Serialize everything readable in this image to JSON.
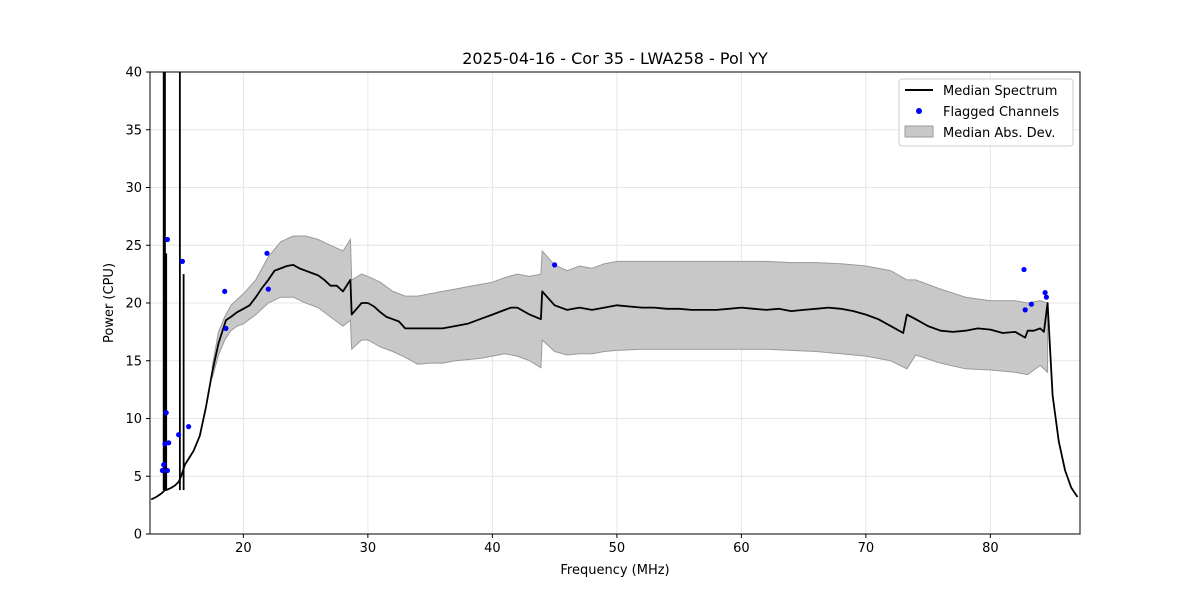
{
  "chart_data": {
    "type": "line",
    "title": "2025-04-16 - Cor 35 - LWA258 - Pol YY",
    "xlabel": "Frequency (MHz)",
    "ylabel": "Power (CPU)",
    "xlim": [
      12.5,
      87.2
    ],
    "ylim": [
      0,
      40
    ],
    "xticks": [
      20,
      30,
      40,
      50,
      60,
      70,
      80
    ],
    "yticks": [
      0,
      5,
      10,
      15,
      20,
      25,
      30,
      35,
      40
    ],
    "grid": true,
    "legend_position": "top-right",
    "legend": [
      "Median Spectrum",
      "Flagged Channels",
      "Median Abs. Dev."
    ],
    "colors": {
      "median": "#000000",
      "flagged": "#0000ff",
      "mad_fill": "#c8c8c8",
      "mad_edge": "#9a9a9a",
      "grid": "#e6e6e6"
    },
    "series": [
      {
        "name": "Median Spectrum",
        "x": [
          12.6,
          13.0,
          13.4,
          13.6,
          13.7,
          13.8,
          14.0,
          14.2,
          14.5,
          14.8,
          15.0,
          15.3,
          15.6,
          16.0,
          16.5,
          17.0,
          17.5,
          18.0,
          18.3,
          18.6,
          19.0,
          19.5,
          20.0,
          20.5,
          21.0,
          21.5,
          22.0,
          22.5,
          23.0,
          23.5,
          24.0,
          24.5,
          25.0,
          25.5,
          26.0,
          26.5,
          27.0,
          27.5,
          28.0,
          28.6,
          28.7,
          29.5,
          30.0,
          30.5,
          31.0,
          31.5,
          32.0,
          32.5,
          33.0,
          34.0,
          35.0,
          36.0,
          37.0,
          38.0,
          39.0,
          40.0,
          41.0,
          41.5,
          42.0,
          43.0,
          43.9,
          44.0,
          45.0,
          46.0,
          47.0,
          48.0,
          49.0,
          50.0,
          51.0,
          52.0,
          53.0,
          54.0,
          55.0,
          56.0,
          57.0,
          58.0,
          59.0,
          60.0,
          61.0,
          62.0,
          63.0,
          64.0,
          65.0,
          66.0,
          67.0,
          68.0,
          69.0,
          70.0,
          71.0,
          72.0,
          73.0,
          73.3,
          74.0,
          75.0,
          76.0,
          77.0,
          78.0,
          79.0,
          80.0,
          81.0,
          82.0,
          82.8,
          83.0,
          83.5,
          84.0,
          84.3,
          84.6,
          85.0,
          85.5,
          86.0,
          86.5,
          87.0
        ],
        "y": [
          3.0,
          3.2,
          3.5,
          3.7,
          3.8,
          3.8,
          3.9,
          4.0,
          4.2,
          4.5,
          5.0,
          6.0,
          6.5,
          7.2,
          8.5,
          11.0,
          14.0,
          16.5,
          17.5,
          18.5,
          18.8,
          19.2,
          19.5,
          19.8,
          20.5,
          21.3,
          22.0,
          22.8,
          23.0,
          23.2,
          23.3,
          23.0,
          22.8,
          22.6,
          22.4,
          22.0,
          21.5,
          21.5,
          21.0,
          22.0,
          19.0,
          20.0,
          20.0,
          19.7,
          19.2,
          18.8,
          18.6,
          18.4,
          17.8,
          17.8,
          17.8,
          17.8,
          18.0,
          18.2,
          18.6,
          19.0,
          19.4,
          19.6,
          19.6,
          19.0,
          18.6,
          21.0,
          19.8,
          19.4,
          19.6,
          19.4,
          19.6,
          19.8,
          19.7,
          19.6,
          19.6,
          19.5,
          19.5,
          19.4,
          19.4,
          19.4,
          19.5,
          19.6,
          19.5,
          19.4,
          19.5,
          19.3,
          19.4,
          19.5,
          19.6,
          19.5,
          19.3,
          19.0,
          18.6,
          18.0,
          17.4,
          19.0,
          18.6,
          18.0,
          17.6,
          17.5,
          17.6,
          17.8,
          17.7,
          17.4,
          17.5,
          17.0,
          17.6,
          17.6,
          17.8,
          17.5,
          20.0,
          12.0,
          8.0,
          5.5,
          4.0,
          3.2
        ]
      },
      {
        "name": "Median Abs. Dev.",
        "x": [
          17.5,
          18.0,
          18.5,
          19.0,
          19.5,
          20.0,
          21.0,
          22.0,
          23.0,
          24.0,
          25.0,
          26.0,
          27.0,
          28.0,
          28.6,
          28.7,
          29.5,
          30.0,
          31.0,
          32.0,
          33.0,
          34.0,
          35.0,
          36.0,
          37.0,
          38.0,
          39.0,
          40.0,
          41.0,
          42.0,
          43.0,
          43.9,
          44.0,
          45.0,
          46.0,
          47.0,
          48.0,
          49.0,
          50.0,
          52.0,
          54.0,
          56.0,
          58.0,
          60.0,
          62.0,
          64.0,
          66.0,
          68.0,
          70.0,
          72.0,
          73.3,
          74.0,
          76.0,
          78.0,
          80.0,
          82.0,
          83.0,
          84.0,
          84.6
        ],
        "upper": [
          14.5,
          17.5,
          18.8,
          19.8,
          20.3,
          20.8,
          22.0,
          24.0,
          25.3,
          25.8,
          25.8,
          25.5,
          25.0,
          24.5,
          25.5,
          22.0,
          22.5,
          22.3,
          21.8,
          21.0,
          20.6,
          20.6,
          20.8,
          21.0,
          21.2,
          21.4,
          21.6,
          21.8,
          22.2,
          22.5,
          22.3,
          22.5,
          24.5,
          23.3,
          22.8,
          23.2,
          23.0,
          23.4,
          23.6,
          23.6,
          23.6,
          23.6,
          23.6,
          23.6,
          23.6,
          23.5,
          23.5,
          23.4,
          23.2,
          22.8,
          22.0,
          22.0,
          21.2,
          20.5,
          20.2,
          20.2,
          20.0,
          20.2,
          20.0
        ],
        "lower": [
          13.5,
          15.5,
          16.8,
          17.6,
          18.0,
          18.2,
          19.0,
          20.0,
          20.5,
          20.5,
          20.0,
          19.6,
          18.8,
          18.0,
          18.5,
          16.0,
          16.8,
          16.8,
          16.2,
          15.8,
          15.3,
          14.7,
          14.8,
          14.8,
          15.0,
          15.1,
          15.2,
          15.4,
          15.6,
          15.4,
          15.0,
          14.4,
          16.8,
          15.8,
          15.5,
          15.6,
          15.6,
          15.8,
          15.9,
          16.0,
          16.0,
          16.0,
          16.0,
          16.0,
          16.0,
          15.9,
          15.8,
          15.6,
          15.4,
          15.0,
          14.3,
          15.5,
          14.8,
          14.3,
          14.2,
          14.0,
          13.8,
          14.6,
          14.0
        ]
      },
      {
        "name": "Flagged Channels",
        "points": [
          [
            13.5,
            5.5
          ],
          [
            13.6,
            6.0
          ],
          [
            13.7,
            7.8
          ],
          [
            13.8,
            10.5
          ],
          [
            13.9,
            25.5
          ],
          [
            13.9,
            5.5
          ],
          [
            14.0,
            7.9
          ],
          [
            14.8,
            8.6
          ],
          [
            15.1,
            23.6
          ],
          [
            15.6,
            9.3
          ],
          [
            18.5,
            21.0
          ],
          [
            18.6,
            17.8
          ],
          [
            21.9,
            24.3
          ],
          [
            22.0,
            21.2
          ],
          [
            45.0,
            23.3
          ],
          [
            82.7,
            22.9
          ],
          [
            82.8,
            19.4
          ],
          [
            83.3,
            19.9
          ],
          [
            84.4,
            20.9
          ],
          [
            84.5,
            20.5
          ]
        ]
      }
    ],
    "spikes": [
      {
        "x": 13.6,
        "y": 40
      },
      {
        "x": 13.7,
        "y": 40
      },
      {
        "x": 13.8,
        "y": 24.3
      },
      {
        "x": 14.9,
        "y": 40
      },
      {
        "x": 15.2,
        "y": 22.5
      }
    ]
  }
}
